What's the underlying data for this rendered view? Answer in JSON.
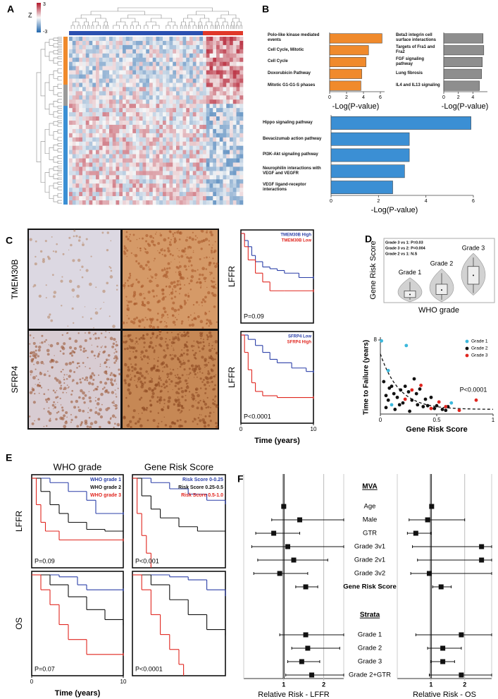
{
  "panel_labels": [
    "A",
    "B",
    "C",
    "D",
    "E",
    "F"
  ],
  "heatmap": {
    "colorbar_title": "Z",
    "colorbar_ticks": [
      3,
      -3
    ]
  },
  "ihc": {
    "row_labels": [
      "TMEM30B",
      "SFRP4"
    ]
  },
  "chart_data": [
    {
      "type": "hbar",
      "categories": [
        "Polo-like kinase mediated events",
        "Cell Cycle, Mitotic",
        "Cell Cycle",
        "Doxorubicin Pathway",
        "Mitotic G1-G1-S phases"
      ],
      "values": [
        6.2,
        4.6,
        4.3,
        3.8,
        3.7
      ],
      "color": "#f08a2c",
      "xlim": [
        0,
        6.5
      ],
      "xticks": [
        0,
        2,
        4,
        6
      ],
      "xlabel": "-Log(P-value)"
    },
    {
      "type": "hbar",
      "categories": [
        "Beta3 integrin cell surface interactions",
        "Targets of Fra1 and Fra2",
        "FGF signaling pathway",
        "Lung fibrosis",
        "IL4 and IL13 signaling"
      ],
      "values": [
        5.4,
        5.5,
        5.3,
        5.2,
        4.9
      ],
      "color": "#8e8e8e",
      "xlim": [
        0,
        6
      ],
      "xticks": [
        0,
        2,
        4
      ],
      "xlabel": "-Log(P-value)"
    },
    {
      "type": "hbar",
      "categories": [
        "Hippo signaling pathway",
        "Bevacizumab action pathway",
        "PI3K-Akt signaling pathway",
        "Neurophilin interactions with VEGF and VEGFR",
        "VEGF ligand-receptor interactions"
      ],
      "values": [
        5.9,
        3.3,
        3.3,
        3.1,
        2.6
      ],
      "color": "#3b8fd4",
      "xlim": [
        0,
        6
      ],
      "xticks": [
        0,
        2,
        4,
        6
      ],
      "xlabel": "-Log(P-value)"
    },
    {
      "type": "km",
      "ylabel": "LFFR",
      "annotation": "P=0.09",
      "xlim": [
        0,
        10
      ],
      "ylim": [
        0,
        1
      ],
      "series": [
        {
          "name": "TMEM30B High",
          "color": "#2b3fa8",
          "x": [
            0,
            0.5,
            1,
            1.5,
            2,
            3,
            4,
            5,
            6,
            8,
            10
          ],
          "values": [
            1,
            0.92,
            0.85,
            0.75,
            0.68,
            0.62,
            0.6,
            0.58,
            0.55,
            0.5,
            0.5
          ]
        },
        {
          "name": "TMEM30B Low",
          "color": "#e0261f",
          "x": [
            0,
            0.5,
            1,
            2,
            3,
            4,
            6,
            10
          ],
          "values": [
            1,
            0.85,
            0.7,
            0.55,
            0.45,
            0.35,
            0.35,
            0.35
          ]
        }
      ]
    },
    {
      "type": "km",
      "ylabel": "LFFR",
      "annotation": "P<0.0001",
      "xlim": [
        0,
        10
      ],
      "ylim": [
        0,
        1
      ],
      "xticks": [
        0,
        10
      ],
      "xlabel": "Time (years)",
      "series": [
        {
          "name": "SFRP4 Low",
          "color": "#2b3fa8",
          "x": [
            0,
            1,
            2,
            3,
            4,
            5,
            7,
            9,
            10
          ],
          "values": [
            1,
            0.95,
            0.88,
            0.8,
            0.72,
            0.68,
            0.62,
            0.58,
            0.58
          ]
        },
        {
          "name": "SFRP4 High",
          "color": "#e0261f",
          "x": [
            0,
            0.5,
            1,
            1.5,
            2,
            3,
            5,
            10
          ],
          "values": [
            1,
            0.8,
            0.6,
            0.45,
            0.35,
            0.3,
            0.28,
            0.28
          ]
        }
      ]
    },
    {
      "type": "box",
      "ylabel": "Gene Risk Score",
      "xlabel": "WHO grade",
      "annotations": [
        "Grade 3 vs 1: P=0.03",
        "Grade 3 vs 2: P=0.004",
        "Grade 2 vs 1: N.S"
      ],
      "categories": [
        "Grade 1",
        "Grade 2",
        "Grade 3"
      ],
      "ylim": [
        0,
        1
      ],
      "whislo": [
        0,
        0,
        0.15
      ],
      "q1": [
        0.05,
        0.12,
        0.35
      ],
      "median": [
        0.12,
        0.22,
        0.55
      ],
      "q3": [
        0.2,
        0.35,
        0.75
      ],
      "whishi": [
        0.4,
        0.6,
        0.95
      ]
    },
    {
      "type": "scatter",
      "ylabel": "Time to Failure (years)",
      "xlabel": "Gene Risk Score",
      "annotation": "P<0.0001",
      "xlim": [
        0,
        1
      ],
      "ylim": [
        0,
        8
      ],
      "xticks": [
        0,
        0.5,
        1
      ],
      "yticks": [
        8
      ],
      "series": [
        {
          "name": "Grade 1",
          "color": "#3cb8dc",
          "x": [
            0.01,
            0.23,
            0.07,
            0.1,
            0.63
          ],
          "values": [
            7.9,
            7.4,
            4.7,
            1.0,
            1.2
          ]
        },
        {
          "name": "Grade 2",
          "color": "#111111",
          "x": [
            0.03,
            0.05,
            0.07,
            0.1,
            0.12,
            0.15,
            0.18,
            0.2,
            0.22,
            0.25,
            0.28,
            0.3,
            0.33,
            0.35,
            0.38,
            0.4,
            0.42,
            0.45,
            0.48,
            0.5,
            0.55,
            0.58,
            0.6,
            0.05,
            0.08,
            0.13,
            0.17,
            0.26,
            0.32
          ],
          "values": [
            3.5,
            2.0,
            1.5,
            3.0,
            2.2,
            1.8,
            2.6,
            1.2,
            3.0,
            2.4,
            1.5,
            3.8,
            1.0,
            2.7,
            0.8,
            1.6,
            0.9,
            1.8,
            0.6,
            0.9,
            0.5,
            0.4,
            0.8,
            0.7,
            2.8,
            0.5,
            1.0,
            0.3,
            2.2
          ]
        },
        {
          "name": "Grade 3",
          "color": "#e0261f",
          "x": [
            0.28,
            0.36,
            0.45,
            0.52,
            0.58,
            0.7,
            0.85,
            0.22
          ],
          "values": [
            2.6,
            3.1,
            0.6,
            1.3,
            0.8,
            0.4,
            1.5,
            1.6
          ]
        }
      ]
    },
    {
      "type": "km",
      "title": "WHO grade",
      "ylabel": "LFFR",
      "annotation": "P=0.09",
      "xlim": [
        0,
        10
      ],
      "ylim": [
        0,
        1
      ],
      "series": [
        {
          "name": "WHO grade 1",
          "color": "#2b3fa8",
          "x": [
            0,
            2,
            4,
            6,
            7,
            10
          ],
          "values": [
            1,
            0.95,
            0.85,
            0.75,
            0.6,
            0.6
          ]
        },
        {
          "name": "WHO grade 2",
          "color": "#111111",
          "x": [
            0,
            1,
            2,
            3,
            4,
            6,
            8,
            10
          ],
          "values": [
            1,
            0.85,
            0.7,
            0.6,
            0.5,
            0.42,
            0.4,
            0.4
          ]
        },
        {
          "name": "WHO grade 3",
          "color": "#e0261f",
          "x": [
            0,
            0.5,
            1,
            1.5,
            3,
            10
          ],
          "values": [
            1,
            0.7,
            0.5,
            0.4,
            0.3,
            0.3
          ]
        }
      ]
    },
    {
      "type": "km",
      "title": "Gene Risk Score",
      "annotation": "P<0.001",
      "xlim": [
        0,
        10
      ],
      "ylim": [
        0,
        1
      ],
      "series": [
        {
          "name": "Risk Score 0-0.25",
          "color": "#2b3fa8",
          "x": [
            0,
            2,
            4,
            6,
            8,
            10
          ],
          "values": [
            1,
            0.95,
            0.88,
            0.82,
            0.75,
            0.72
          ]
        },
        {
          "name": "Risk Score 0.25-0.5",
          "color": "#111111",
          "x": [
            0,
            1,
            2,
            3,
            5,
            7,
            10
          ],
          "values": [
            1,
            0.8,
            0.65,
            0.55,
            0.45,
            0.4,
            0.4
          ]
        },
        {
          "name": "Risk Score 0.5-1.0",
          "color": "#e0261f",
          "x": [
            0,
            0.5,
            1,
            1.5,
            2
          ],
          "values": [
            1,
            0.6,
            0.35,
            0.15,
            0
          ]
        }
      ]
    },
    {
      "type": "km",
      "ylabel": "OS",
      "annotation": "P=0.07",
      "xlim": [
        0,
        10
      ],
      "ylim": [
        0,
        1
      ],
      "xticks": [
        0,
        10
      ],
      "xlabel": "Time (years)",
      "series": [
        {
          "color": "#2b3fa8",
          "x": [
            0,
            3,
            5,
            6,
            10
          ],
          "values": [
            1,
            0.98,
            0.9,
            0.85,
            0.85
          ]
        },
        {
          "color": "#111111",
          "x": [
            0,
            2,
            4,
            6,
            8,
            10
          ],
          "values": [
            1,
            0.9,
            0.78,
            0.65,
            0.55,
            0.5
          ]
        },
        {
          "color": "#e0261f",
          "x": [
            0,
            1,
            2,
            3,
            4,
            6,
            10
          ],
          "values": [
            1,
            0.85,
            0.7,
            0.5,
            0.35,
            0.2,
            0.2
          ]
        }
      ]
    },
    {
      "type": "km",
      "annotation": "P<0.0001",
      "xlim": [
        0,
        10
      ],
      "ylim": [
        0,
        1
      ],
      "series": [
        {
          "color": "#2b3fa8",
          "x": [
            0,
            4,
            6,
            8,
            10
          ],
          "values": [
            1,
            0.98,
            0.95,
            0.85,
            0.8
          ]
        },
        {
          "color": "#111111",
          "x": [
            0,
            2,
            4,
            6,
            8,
            10
          ],
          "values": [
            1,
            0.9,
            0.75,
            0.6,
            0.45,
            0.4
          ]
        },
        {
          "color": "#e0261f",
          "x": [
            0,
            1,
            2,
            3,
            4,
            5,
            5.5
          ],
          "values": [
            1,
            0.85,
            0.6,
            0.4,
            0.25,
            0.1,
            0
          ]
        }
      ]
    },
    {
      "type": "forest",
      "xlabel": "Relative Risk - LFFR",
      "xlim": [
        0,
        2.5
      ],
      "xticks": [
        1,
        2
      ],
      "ref_line": 1,
      "groups": [
        {
          "label": "MVA",
          "categories": [
            "Age",
            "Male",
            "GTR",
            "Grade 3v1",
            "Grade 2v1",
            "Grade 3v2",
            "Gene Risk Score"
          ],
          "values": [
            1.0,
            1.4,
            0.75,
            1.1,
            1.25,
            0.9,
            1.55
          ],
          "lower": [
            0.95,
            0.7,
            0.3,
            0.2,
            0.35,
            0.25,
            1.3
          ],
          "upper": [
            1.05,
            2.5,
            1.4,
            2.5,
            2.1,
            1.6,
            1.85
          ]
        },
        {
          "label": "Strata",
          "categories": [
            "Grade 1",
            "Grade 2",
            "Grade 3",
            "Grade 2+GTR"
          ],
          "values": [
            1.55,
            1.6,
            1.45,
            1.7
          ],
          "lower": [
            0.9,
            1.2,
            1.1,
            1.05
          ],
          "upper": [
            2.5,
            2.4,
            1.9,
            2.5
          ]
        }
      ]
    },
    {
      "type": "forest",
      "xlabel": "Relative Risk - OS",
      "xlim": [
        0,
        2.8
      ],
      "xticks": [
        1,
        2
      ],
      "ref_line": 1,
      "groups": [
        {
          "values": [
            1.02,
            0.9,
            0.55,
            2.5,
            2.5,
            0.95,
            1.3
          ],
          "lower": [
            0.97,
            0.35,
            0.3,
            0.45,
            0.6,
            0.4,
            1.05
          ],
          "upper": [
            1.07,
            2.0,
            1.0,
            2.8,
            2.8,
            2.8,
            1.6
          ]
        },
        {
          "values": [
            1.9,
            1.35,
            1.35,
            1.9
          ],
          "lower": [
            0.55,
            0.9,
            1.0,
            0.95
          ],
          "upper": [
            2.8,
            1.9,
            1.7,
            2.8
          ]
        }
      ]
    }
  ]
}
